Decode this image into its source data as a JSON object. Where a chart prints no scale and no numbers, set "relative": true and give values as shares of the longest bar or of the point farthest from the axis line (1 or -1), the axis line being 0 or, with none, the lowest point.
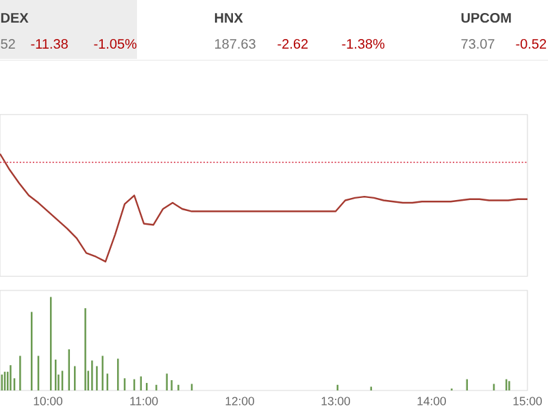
{
  "chart_data": [
    {
      "type": "line",
      "relative": true,
      "categories": [
        null,
        null,
        null,
        null,
        null,
        null,
        null,
        null,
        null,
        null,
        null,
        null,
        null,
        null,
        null,
        null,
        null,
        null,
        null,
        null,
        null,
        null,
        null,
        null,
        null,
        null,
        null,
        null,
        null,
        null,
        null,
        null,
        null,
        null,
        null,
        null,
        null,
        null,
        null,
        null,
        null,
        null,
        null,
        null,
        null,
        null,
        null,
        null,
        null,
        null,
        null,
        null,
        null,
        null,
        null,
        null
      ],
      "annotations": [
        "DEX",
        "52",
        "-11.38",
        "-1.05%",
        "HNX",
        "187.63",
        "-2.62",
        "-1.38%",
        "UPCOM",
        "73.07",
        "-0.52"
      ],
      "ref_lines": [
        {
          "axis": "y",
          "value": 0.93,
          "color": "#e06070",
          "line_style": "dotted"
        }
      ],
      "series": [
        {
          "color": "#a63a30",
          "values": [
            1.0,
            0.87,
            0.76,
            0.66,
            0.6,
            0.53,
            0.46,
            0.39,
            0.31,
            0.19,
            0.16,
            0.12,
            0.34,
            0.59,
            0.66,
            0.43,
            0.42,
            0.55,
            0.6,
            0.55,
            0.53,
            0.53,
            0.53,
            0.53,
            0.53,
            0.53,
            0.53,
            0.53,
            0.53,
            0.53,
            0.53,
            0.53,
            0.53,
            0.53,
            0.53,
            0.53,
            0.62,
            0.64,
            0.65,
            0.64,
            0.62,
            0.61,
            0.6,
            0.6,
            0.61,
            0.61,
            0.61,
            0.61,
            0.62,
            0.63,
            0.63,
            0.62,
            0.62,
            0.62,
            0.63,
            0.63
          ]
        }
      ]
    },
    {
      "type": "bar",
      "relative": true,
      "xlim": [
        9.5,
        15.0
      ],
      "color": "#6a9a50",
      "xticks": [
        {
          "value": 10,
          "label": "10:00"
        },
        {
          "value": 11,
          "label": "11:00"
        },
        {
          "value": 12,
          "label": "12:00"
        },
        {
          "value": 13,
          "label": "13:00"
        },
        {
          "value": 14,
          "label": "14:00"
        },
        {
          "value": 15,
          "label": "15:00"
        }
      ],
      "x": [
        9.52,
        9.55,
        9.58,
        9.61,
        9.65,
        9.71,
        9.83,
        9.9,
        10.03,
        10.08,
        10.11,
        10.15,
        10.22,
        10.28,
        10.39,
        10.42,
        10.46,
        10.51,
        10.57,
        10.62,
        10.73,
        10.8,
        10.9,
        10.97,
        11.03,
        11.13,
        11.24,
        11.29,
        11.36,
        11.5,
        13.02,
        13.37,
        14.21,
        14.37,
        14.65,
        14.78,
        14.81
      ],
      "values": [
        0.17,
        0.2,
        0.2,
        0.27,
        0.13,
        0.37,
        0.84,
        0.37,
        1.0,
        0.33,
        0.17,
        0.21,
        0.44,
        0.26,
        0.88,
        0.21,
        0.32,
        0.26,
        0.37,
        0.18,
        0.34,
        0.13,
        0.12,
        0.15,
        0.08,
        0.06,
        0.18,
        0.11,
        0.06,
        0.07,
        0.06,
        0.04,
        0.02,
        0.12,
        0.07,
        0.12,
        0.1
      ]
    }
  ]
}
